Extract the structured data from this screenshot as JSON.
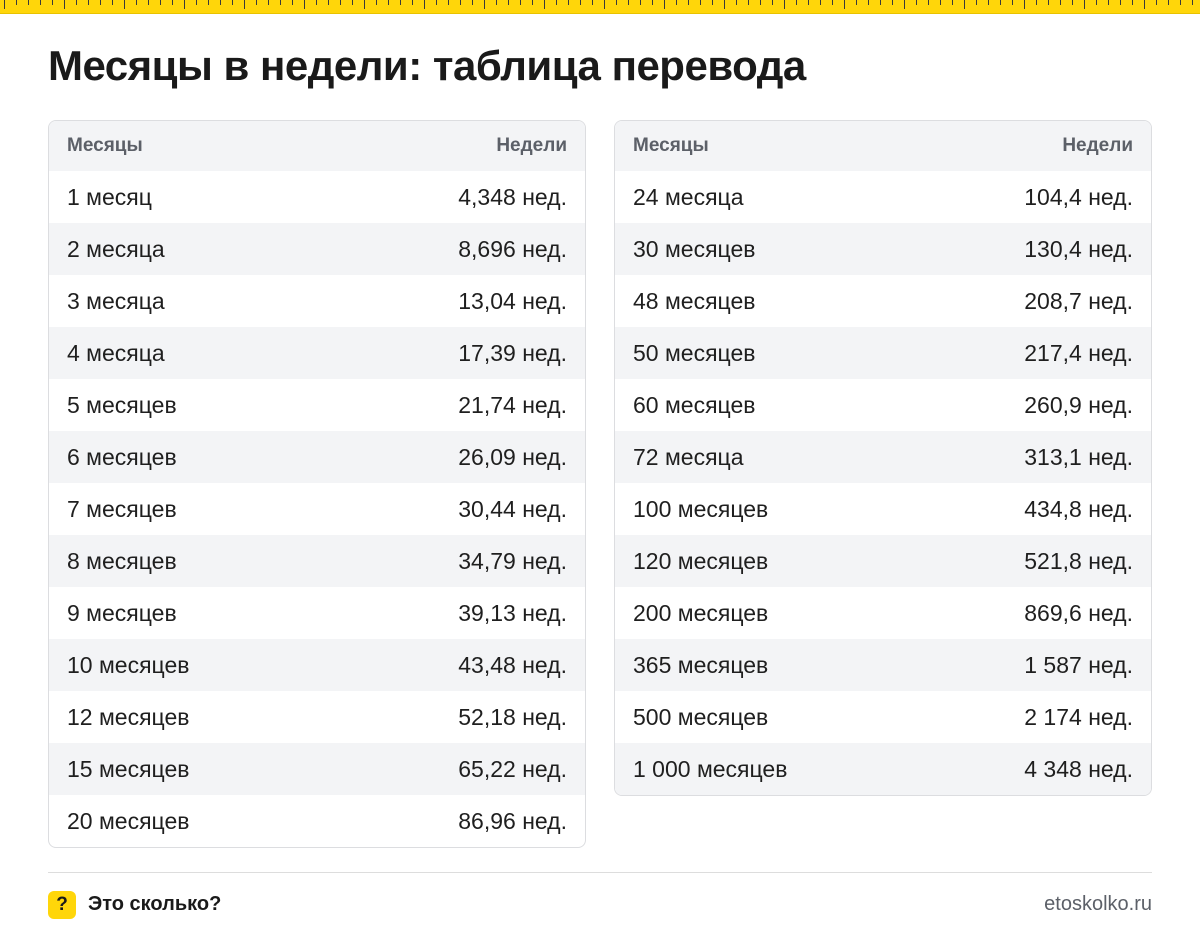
{
  "title": "Месяцы в недели: таблица перевода",
  "tables": [
    {
      "header": {
        "months": "Месяцы",
        "weeks": "Недели"
      },
      "rows": [
        {
          "months": "1 месяц",
          "weeks": "4,348 нед."
        },
        {
          "months": "2 месяца",
          "weeks": "8,696 нед."
        },
        {
          "months": "3 месяца",
          "weeks": "13,04 нед."
        },
        {
          "months": "4 месяца",
          "weeks": "17,39 нед."
        },
        {
          "months": "5 месяцев",
          "weeks": "21,74 нед."
        },
        {
          "months": "6 месяцев",
          "weeks": "26,09 нед."
        },
        {
          "months": "7 месяцев",
          "weeks": "30,44 нед."
        },
        {
          "months": "8 месяцев",
          "weeks": "34,79 нед."
        },
        {
          "months": "9 месяцев",
          "weeks": "39,13 нед."
        },
        {
          "months": "10 месяцев",
          "weeks": "43,48 нед."
        },
        {
          "months": "12 месяцев",
          "weeks": "52,18 нед."
        },
        {
          "months": "15 месяцев",
          "weeks": "65,22 нед."
        },
        {
          "months": "20 месяцев",
          "weeks": "86,96 нед."
        }
      ]
    },
    {
      "header": {
        "months": "Месяцы",
        "weeks": "Недели"
      },
      "rows": [
        {
          "months": "24 месяца",
          "weeks": "104,4 нед."
        },
        {
          "months": "30 месяцев",
          "weeks": "130,4 нед."
        },
        {
          "months": "48 месяцев",
          "weeks": "208,7 нед."
        },
        {
          "months": "50 месяцев",
          "weeks": "217,4 нед."
        },
        {
          "months": "60 месяцев",
          "weeks": "260,9 нед."
        },
        {
          "months": "72 месяца",
          "weeks": "313,1 нед."
        },
        {
          "months": "100 месяцев",
          "weeks": "434,8 нед."
        },
        {
          "months": "120 месяцев",
          "weeks": "521,8 нед."
        },
        {
          "months": "200 месяцев",
          "weeks": "869,6 нед."
        },
        {
          "months": "365 месяцев",
          "weeks": "1 587 нед."
        },
        {
          "months": "500 месяцев",
          "weeks": "2 174 нед."
        },
        {
          "months": "1 000 месяцев",
          "weeks": "4 348 нед."
        }
      ]
    }
  ],
  "footer": {
    "badge": "?",
    "brand": "Это сколько?",
    "site": "etoskolko.ru"
  },
  "colors": {
    "accent": "#ffd60a",
    "header_bg": "#f3f4f6",
    "border": "#dcdde0",
    "muted_text": "#5c6068"
  },
  "icons": {
    "ruler": "ruler-decoration",
    "badge": "question-mark-icon"
  }
}
